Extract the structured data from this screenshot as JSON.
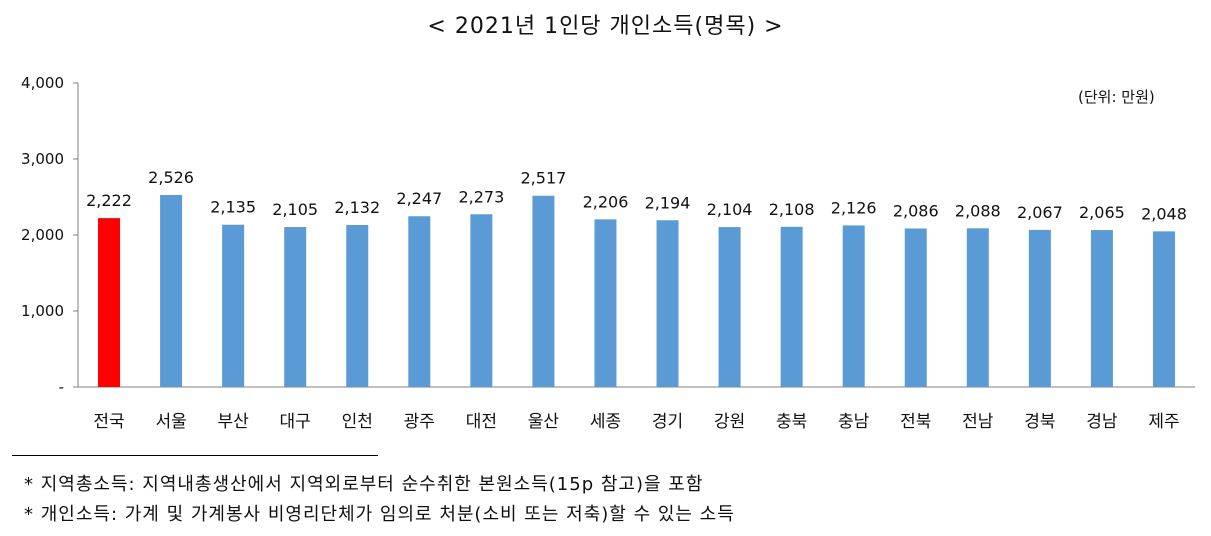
{
  "title": "< 2021년 1인당 개인소득(명목) >",
  "unit_label": "(단위: 만원)",
  "notes": [
    "* 지역총소득: 지역내총생산에서 지역외로부터 순수취한 본원소득(15p 참고)을 포함",
    "* 개인소득: 가계 및 가계봉사 비영리단체가 임의로 처분(소비 또는 저축)할 수 있는 소득"
  ],
  "colors": {
    "highlight": "#ff0000",
    "bar": "#5b9bd5",
    "axis": "#808080"
  },
  "chart_data": {
    "type": "bar",
    "categories": [
      "전국",
      "서울",
      "부산",
      "대구",
      "인천",
      "광주",
      "대전",
      "울산",
      "세종",
      "경기",
      "강원",
      "충북",
      "충남",
      "전북",
      "전남",
      "경북",
      "경남",
      "제주"
    ],
    "values": [
      2222,
      2526,
      2135,
      2105,
      2132,
      2247,
      2273,
      2517,
      2206,
      2194,
      2104,
      2108,
      2126,
      2086,
      2088,
      2067,
      2065,
      2048
    ],
    "data_labels": [
      "2,222",
      "2,526",
      "2,135",
      "2,105",
      "2,132",
      "2,247",
      "2,273",
      "2,517",
      "2,206",
      "2,194",
      "2,104",
      "2,108",
      "2,126",
      "2,086",
      "2,088",
      "2,067",
      "2,065",
      "2,048"
    ],
    "highlight_index": 0,
    "ylim": [
      0,
      4000
    ],
    "yticks": [
      0,
      1000,
      2000,
      3000,
      4000
    ],
    "ytick_labels": [
      "-",
      "1,000",
      "2,000",
      "3,000",
      "4,000"
    ],
    "grid": false,
    "legend": "none"
  }
}
